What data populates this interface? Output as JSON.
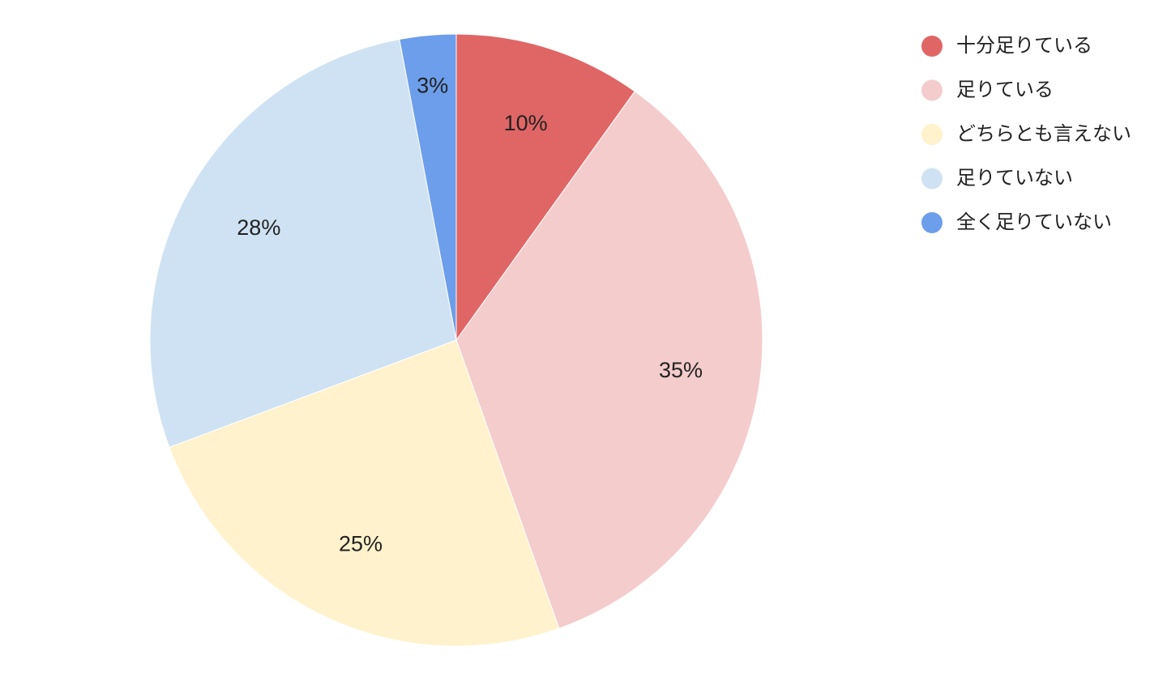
{
  "chart_data": {
    "type": "pie",
    "categories": [
      "十分足りている",
      "足りている",
      "どちらとも言えない",
      "足りていない",
      "全く足りていない"
    ],
    "values": [
      10,
      35,
      25,
      28,
      3
    ],
    "value_labels": [
      "10%",
      "35%",
      "25%",
      "28%",
      "3%"
    ],
    "colors": [
      "#e06666",
      "#f4cccc",
      "#fff2cc",
      "#cfe2f3",
      "#6d9eeb"
    ],
    "legend": "right"
  }
}
